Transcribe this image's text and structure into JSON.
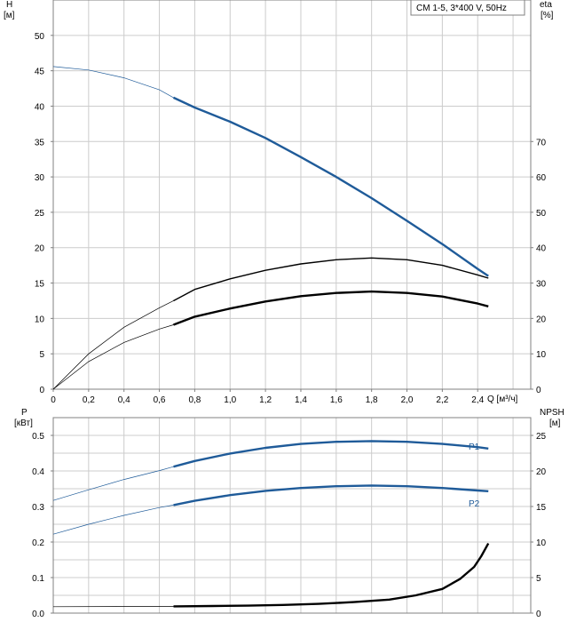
{
  "legend_box": "CM 1-5, 3*400 V, 50Hz",
  "colors": {
    "blue": "#1f5b99",
    "black": "#000000",
    "grid": "#cccccc",
    "frame": "#808080"
  },
  "chart_data": [
    {
      "type": "line",
      "title": "",
      "legend": "CM 1-5, 3*400 V, 50Hz",
      "legend_placement": "top-right",
      "grid": true,
      "x": {
        "label": "Q [м³/ч]",
        "range": [
          0,
          2.7
        ],
        "ticks": [
          "0",
          "0,2",
          "0,4",
          "0,6",
          "0,8",
          "1,0",
          "1,2",
          "1,4",
          "1,6",
          "1,8",
          "2,0",
          "2,2",
          "2,4"
        ]
      },
      "y_left": {
        "label": "H",
        "unit": "[м]",
        "range": [
          0,
          55
        ],
        "ticks": [
          "0",
          "5",
          "10",
          "15",
          "20",
          "25",
          "30",
          "35",
          "40",
          "45",
          "50"
        ]
      },
      "y_right": {
        "label": "eta",
        "unit": "[%]",
        "range": [
          0,
          110
        ],
        "ticks": [
          "0",
          "10",
          "20",
          "30",
          "40",
          "50",
          "60",
          "70"
        ]
      },
      "series": [
        {
          "axis": "left",
          "color": "#1f5b99",
          "points": [
            [
              0,
              45.6
            ],
            [
              0.2,
              45.1
            ],
            [
              0.4,
              44.0
            ],
            [
              0.6,
              42.3
            ],
            [
              0.68,
              41.2
            ],
            [
              0.8,
              39.8
            ],
            [
              1.0,
              37.8
            ],
            [
              1.2,
              35.5
            ],
            [
              1.4,
              32.8
            ],
            [
              1.6,
              30.0
            ],
            [
              1.8,
              27.0
            ],
            [
              2.0,
              23.8
            ],
            [
              2.2,
              20.5
            ],
            [
              2.4,
              17.0
            ],
            [
              2.46,
              16.0
            ]
          ],
          "operating_range": [
            0.68,
            2.46
          ]
        },
        {
          "axis": "right",
          "color": "#000000",
          "points": [
            [
              0,
              0
            ],
            [
              0.2,
              10.0
            ],
            [
              0.4,
              17.5
            ],
            [
              0.6,
              23.0
            ],
            [
              0.68,
              25.0
            ],
            [
              0.8,
              28.2
            ],
            [
              1.0,
              31.2
            ],
            [
              1.2,
              33.6
            ],
            [
              1.4,
              35.4
            ],
            [
              1.6,
              36.6
            ],
            [
              1.8,
              37.1
            ],
            [
              2.0,
              36.6
            ],
            [
              2.2,
              35.0
            ],
            [
              2.4,
              32.3
            ],
            [
              2.46,
              31.4
            ]
          ],
          "operating_range": [
            0.68,
            2.46
          ]
        },
        {
          "axis": "right",
          "color": "#000000",
          "points": [
            [
              0,
              0
            ],
            [
              0.2,
              7.8
            ],
            [
              0.4,
              13.2
            ],
            [
              0.6,
              17.0
            ],
            [
              0.68,
              18.2
            ],
            [
              0.8,
              20.5
            ],
            [
              1.0,
              22.8
            ],
            [
              1.2,
              24.8
            ],
            [
              1.4,
              26.3
            ],
            [
              1.6,
              27.2
            ],
            [
              1.8,
              27.6
            ],
            [
              2.0,
              27.2
            ],
            [
              2.2,
              26.2
            ],
            [
              2.4,
              24.2
            ],
            [
              2.46,
              23.4
            ]
          ],
          "operating_range": [
            0.68,
            2.46
          ]
        }
      ]
    },
    {
      "type": "line",
      "title": "",
      "grid": true,
      "x": {
        "label": "Q [м³/ч]",
        "range": [
          0,
          2.7
        ]
      },
      "y_left": {
        "label": "P",
        "unit": "[кВт]",
        "range": [
          0,
          0.55
        ],
        "ticks": [
          "0.0",
          "0.1",
          "0.2",
          "0.3",
          "0.4",
          "0.5"
        ]
      },
      "y_right": {
        "label": "NPSH",
        "unit": "[м]",
        "range": [
          0,
          27.5
        ],
        "ticks": [
          "0",
          "5",
          "10",
          "15",
          "20",
          "25"
        ]
      },
      "series": [
        {
          "name": "P1",
          "axis": "left",
          "color": "#1f5b99",
          "points": [
            [
              0,
              0.317
            ],
            [
              0.2,
              0.347
            ],
            [
              0.4,
              0.376
            ],
            [
              0.6,
              0.401
            ],
            [
              0.68,
              0.412
            ],
            [
              0.8,
              0.428
            ],
            [
              1.0,
              0.449
            ],
            [
              1.2,
              0.465
            ],
            [
              1.4,
              0.476
            ],
            [
              1.6,
              0.482
            ],
            [
              1.8,
              0.484
            ],
            [
              2.0,
              0.482
            ],
            [
              2.2,
              0.476
            ],
            [
              2.4,
              0.467
            ],
            [
              2.46,
              0.463
            ]
          ],
          "operating_range": [
            0.68,
            2.46
          ]
        },
        {
          "name": "P2",
          "axis": "left",
          "color": "#1f5b99",
          "points": [
            [
              0,
              0.222
            ],
            [
              0.2,
              0.25
            ],
            [
              0.4,
              0.275
            ],
            [
              0.6,
              0.297
            ],
            [
              0.68,
              0.304
            ],
            [
              0.8,
              0.316
            ],
            [
              1.0,
              0.332
            ],
            [
              1.2,
              0.344
            ],
            [
              1.4,
              0.352
            ],
            [
              1.6,
              0.357
            ],
            [
              1.8,
              0.359
            ],
            [
              2.0,
              0.357
            ],
            [
              2.2,
              0.352
            ],
            [
              2.4,
              0.345
            ],
            [
              2.46,
              0.343
            ]
          ],
          "operating_range": [
            0.68,
            2.46
          ]
        },
        {
          "axis": "right",
          "color": "#000000",
          "points": [
            [
              0,
              0.9
            ],
            [
              0.68,
              0.95
            ],
            [
              0.9,
              1.0
            ],
            [
              1.1,
              1.05
            ],
            [
              1.3,
              1.15
            ],
            [
              1.5,
              1.3
            ],
            [
              1.7,
              1.55
            ],
            [
              1.9,
              1.9
            ],
            [
              2.05,
              2.5
            ],
            [
              2.2,
              3.4
            ],
            [
              2.3,
              4.8
            ],
            [
              2.38,
              6.5
            ],
            [
              2.42,
              8.0
            ],
            [
              2.46,
              9.8
            ]
          ],
          "operating_range": [
            0.68,
            2.46
          ]
        }
      ]
    }
  ]
}
